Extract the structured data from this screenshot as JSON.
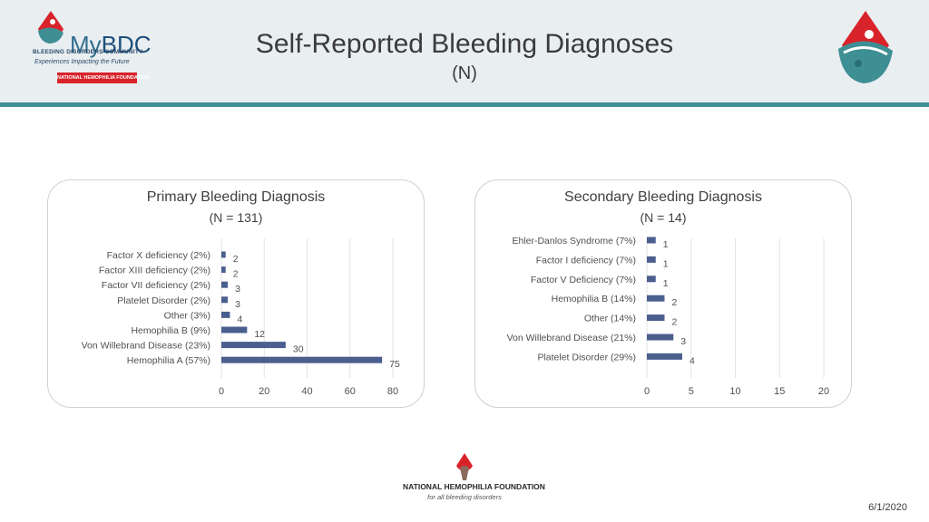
{
  "header": {
    "title": "Self-Reported Bleeding Diagnoses",
    "subtitle": "(N)"
  },
  "logo": {
    "name_my": "My",
    "name_bdc": "BDC",
    "tagline_1": "BLEEDING DISORDERS COMMUNITY",
    "tagline_2": "Experiences Impacting the Future",
    "badge": "NATIONAL HEMOPHILIA FOUNDATION"
  },
  "footer": {
    "nhf_name": "NATIONAL HEMOPHILIA FOUNDATION",
    "nhf_tagline": "for all bleeding disorders",
    "date": "6/1/2020"
  },
  "colors": {
    "bar": "#4a5f8e",
    "teal": "#3e8f94",
    "red": "#d8232a"
  },
  "chart_data": [
    {
      "type": "bar",
      "orientation": "horizontal",
      "title": "Primary Bleeding Diagnosis",
      "subtitle": "(N = 131)",
      "categories": [
        "Factor X deficiency (2%)",
        "Factor XIII deficiency (2%)",
        "Factor VII deficiency  (2%)",
        "Platelet Disorder (2%)",
        "Other (3%)",
        "Hemophilia B (9%)",
        "Von Willebrand Disease (23%)",
        "Hemophilia A (57%)"
      ],
      "values": [
        2,
        2,
        3,
        3,
        4,
        12,
        30,
        75
      ],
      "xlim": [
        0,
        80
      ],
      "xticks": [
        0,
        20,
        40,
        60,
        80
      ],
      "grid": "vertical",
      "data_labels": true
    },
    {
      "type": "bar",
      "orientation": "horizontal",
      "title": "Secondary Bleeding Diagnosis",
      "subtitle": "(N = 14)",
      "categories": [
        "Ehler-Danlos Syndrome (7%)",
        "Factor I deficiency (7%)",
        "Factor V Deficiency (7%)",
        "Hemophilia B (14%)",
        "Other (14%)",
        "Von Willebrand Disease (21%)",
        "Platelet Disorder (29%)"
      ],
      "values": [
        1,
        1,
        1,
        2,
        2,
        3,
        4
      ],
      "xlim": [
        0,
        20
      ],
      "xticks": [
        0,
        5,
        10,
        15,
        20
      ],
      "grid": "vertical",
      "data_labels": true
    }
  ]
}
